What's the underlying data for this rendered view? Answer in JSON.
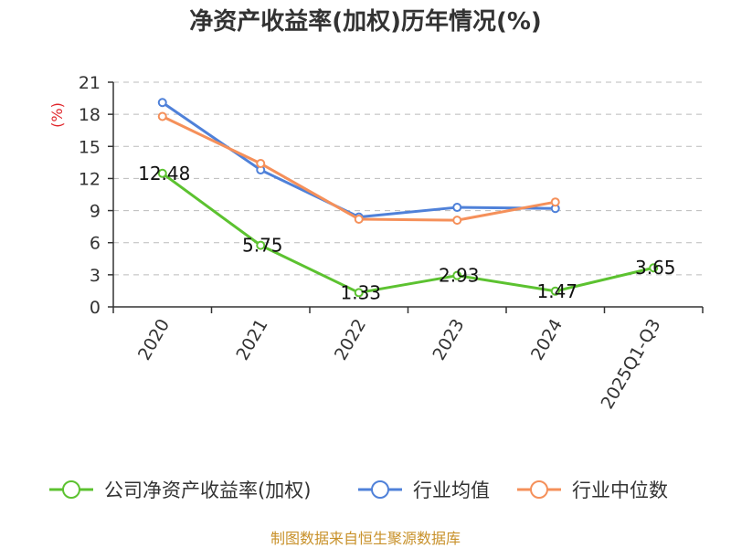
{
  "chart_data": {
    "type": "line",
    "title": "净资产收益率(加权)历年情况(%)",
    "ylabel": "(%)",
    "ylim": [
      0,
      21
    ],
    "yticks": [
      0,
      3,
      6,
      9,
      12,
      15,
      18,
      21
    ],
    "grid": true,
    "legend_position": "bottom",
    "categories": [
      "2020",
      "2021",
      "2022",
      "2023",
      "2024",
      "2025Q1-Q3"
    ],
    "series": [
      {
        "name": "公司净资产收益率(加权)",
        "color": "#5cc230",
        "values": [
          12.48,
          5.75,
          1.33,
          2.93,
          1.47,
          3.65
        ],
        "labels": [
          "12.48",
          "5.75",
          "1.33",
          "2.93",
          "1.47",
          "3.65"
        ]
      },
      {
        "name": "行业均值",
        "color": "#4f81d9",
        "values": [
          19.1,
          12.8,
          8.4,
          9.3,
          9.2,
          null
        ]
      },
      {
        "name": "行业中位数",
        "color": "#f5905a",
        "values": [
          17.8,
          13.4,
          8.2,
          8.1,
          9.8,
          null
        ]
      }
    ]
  },
  "footer": {
    "source": "制图数据来自恒生聚源数据库"
  }
}
